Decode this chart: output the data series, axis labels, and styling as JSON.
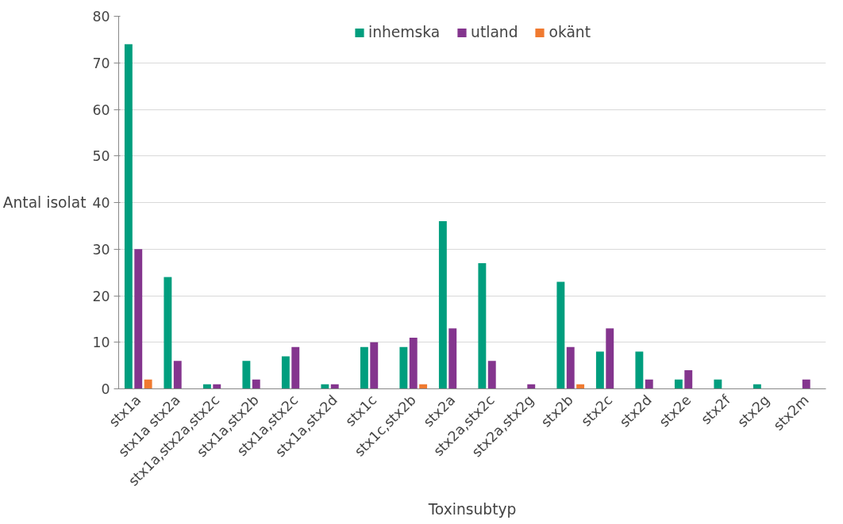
{
  "chart_data": {
    "type": "bar",
    "xlabel": "Toxinsubtyp",
    "ylabel": "Antal isolat",
    "categories": [
      "stx1a",
      "stx1a stx2a",
      "stx1a,stx2a,stx2c",
      "stx1a,stx2b",
      "stx1a,stx2c",
      "stx1a,stx2d",
      "stx1c",
      "stx1c,stx2b",
      "stx2a",
      "stx2a,stx2c",
      "stx2a,stx2g",
      "stx2b",
      "stx2c",
      "stx2d",
      "stx2e",
      "stx2f",
      "stx2g",
      "stx2m"
    ],
    "series": [
      {
        "name": "inhemska",
        "color": "#009e7e",
        "values": [
          74,
          24,
          1,
          6,
          7,
          1,
          9,
          9,
          36,
          27,
          0,
          23,
          8,
          8,
          2,
          2,
          1,
          0
        ]
      },
      {
        "name": "utland",
        "color": "#84358e",
        "values": [
          30,
          6,
          1,
          2,
          9,
          1,
          10,
          11,
          13,
          6,
          1,
          9,
          13,
          2,
          4,
          0,
          0,
          2
        ]
      },
      {
        "name": "okänt",
        "color": "#f07a30",
        "values": [
          2,
          0,
          0,
          0,
          0,
          0,
          0,
          1,
          0,
          0,
          0,
          1,
          0,
          0,
          0,
          0,
          0,
          0
        ]
      }
    ],
    "ylim": [
      0,
      80
    ],
    "yticks": [
      0,
      10,
      20,
      30,
      40,
      50,
      60,
      70,
      80
    ],
    "grid": "y",
    "legend": "top"
  }
}
